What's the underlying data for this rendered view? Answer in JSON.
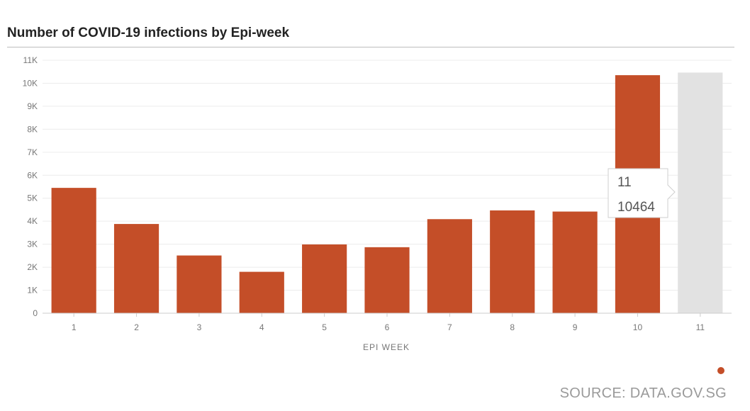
{
  "title": "Number of COVID-19 infections by Epi-week",
  "source": "SOURCE: DATA.GOV.SG",
  "colors": {
    "bar": "#c44e28",
    "highlight": "#e2e2e2"
  },
  "tooltip": {
    "label": "11",
    "value": "10464"
  },
  "chart_data": {
    "type": "bar",
    "title": "Number of COVID-19 infections by Epi-week",
    "xlabel": "EPI WEEK",
    "ylabel": "",
    "categories": [
      "1",
      "2",
      "3",
      "4",
      "5",
      "6",
      "7",
      "8",
      "9",
      "10",
      "11"
    ],
    "values": [
      5450,
      3880,
      2510,
      1800,
      2990,
      2870,
      4090,
      4470,
      4420,
      10350,
      10464
    ],
    "highlighted_index": 10,
    "ylim": [
      0,
      11000
    ],
    "yticks": [
      0,
      1000,
      2000,
      3000,
      4000,
      5000,
      6000,
      7000,
      8000,
      9000,
      10000,
      11000
    ],
    "ytick_labels": [
      "0",
      "1K",
      "2K",
      "3K",
      "4K",
      "5K",
      "6K",
      "7K",
      "8K",
      "9K",
      "10K",
      "11K"
    ],
    "grid": true,
    "legend": "none"
  }
}
